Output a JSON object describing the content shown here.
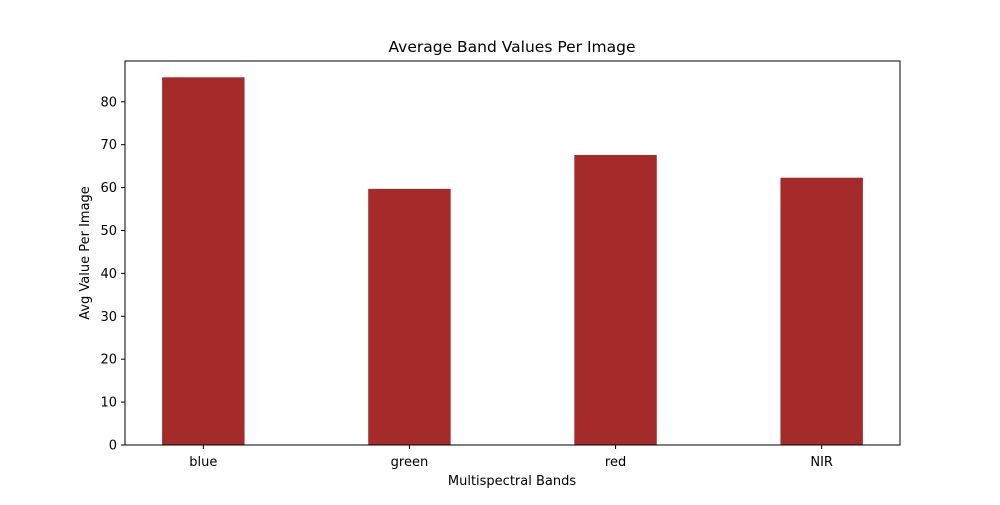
{
  "chart_data": {
    "type": "bar",
    "title": "Average Band Values Per Image",
    "xlabel": "Multispectral Bands",
    "ylabel": "Avg Value Per Image",
    "categories": [
      "blue",
      "green",
      "red",
      "NIR"
    ],
    "values": [
      85.7,
      59.7,
      67.6,
      62.3
    ],
    "ylim": [
      0,
      89.5
    ],
    "yticks": [
      0,
      10,
      20,
      30,
      40,
      50,
      60,
      70,
      80
    ],
    "bar_color": "#a52a2a",
    "grid": false,
    "legend": "none"
  }
}
